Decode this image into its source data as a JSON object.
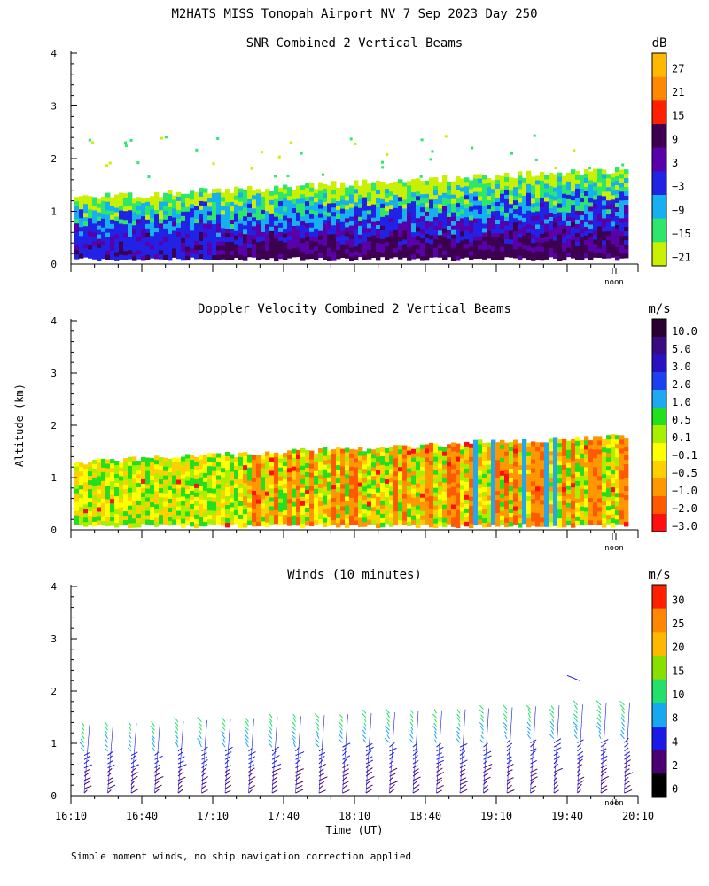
{
  "title": "M2HATS MISS Tonopah Airport NV   7 Sep 2023 Day 250",
  "footnote": "Simple moment winds, no ship navigation correction applied",
  "chart_data": [
    {
      "type": "heatmap",
      "title": "SNR Combined 2 Vertical Beams",
      "ylabel": "",
      "ylim": [
        0,
        4
      ],
      "yticks": [
        "0",
        "1",
        "2",
        "3",
        "4"
      ],
      "noon_label": "noon",
      "colorbar": {
        "unit": "dB",
        "labels": [
          "27",
          "21",
          "15",
          "9",
          "3",
          "−3",
          "−9",
          "−15",
          "−21"
        ],
        "colors": [
          "#ffb800",
          "#ff8800",
          "#ff2000",
          "#3d0050",
          "#5a00aa",
          "#2222e6",
          "#16b0f0",
          "#2ee66a",
          "#c8f000"
        ]
      }
    },
    {
      "type": "heatmap",
      "title": "Doppler Velocity Combined 2 Vertical Beams",
      "ylabel": "Altitude (km)",
      "ylim": [
        0,
        4
      ],
      "yticks": [
        "0",
        "1",
        "2",
        "3",
        "4"
      ],
      "noon_label": "noon",
      "colorbar": {
        "unit": "m/s",
        "labels": [
          "10.0",
          "5.0",
          "3.0",
          "2.0",
          "1.0",
          "0.5",
          "0.1",
          "−0.1",
          "−0.5",
          "−1.0",
          "−2.0",
          "−3.0"
        ],
        "colors": [
          "#2a0030",
          "#3c0a80",
          "#2a10c0",
          "#1a40f0",
          "#20a8f0",
          "#22e020",
          "#a8f000",
          "#ffff00",
          "#ffd000",
          "#ff9800",
          "#ff5a00",
          "#ff1010"
        ]
      }
    },
    {
      "type": "wind-barbs",
      "title": "Winds (10 minutes)",
      "ylabel": "",
      "ylim": [
        0,
        4
      ],
      "yticks": [
        "0",
        "1",
        "2",
        "3",
        "4"
      ],
      "noon_label": "noon",
      "xlabel": "Time (UT)",
      "xticks": [
        "16:10",
        "16:40",
        "17:10",
        "17:40",
        "18:10",
        "18:40",
        "19:10",
        "19:40",
        "20:10"
      ],
      "colorbar": {
        "unit": "m/s",
        "labels": [
          "30",
          "25",
          "20",
          "15",
          "10",
          "8",
          "4",
          "2",
          "0"
        ],
        "colors": [
          "#ff2000",
          "#ff8800",
          "#ffb800",
          "#88e000",
          "#22e06a",
          "#16a8f0",
          "#1a1ae6",
          "#4a0070",
          "#000000"
        ]
      }
    }
  ]
}
